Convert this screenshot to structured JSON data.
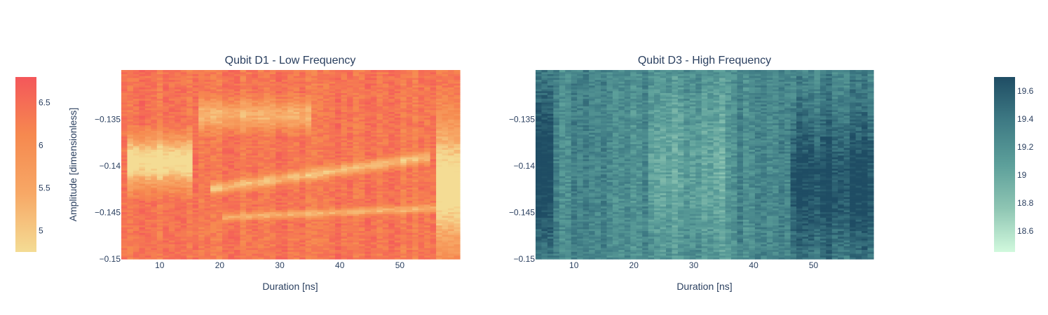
{
  "chart_data": [
    {
      "type": "heatmap",
      "title": "Qubit D1 - Low Frequency",
      "xlabel": "Duration [ns]",
      "ylabel": "Amplitude [dimensionless]",
      "xlim": [
        3.6,
        60
      ],
      "ylim": [
        -0.15,
        -0.13
      ],
      "x_ticks": [
        10,
        20,
        30,
        40,
        50
      ],
      "x_tick_labels": [
        "10",
        "20",
        "30",
        "40",
        "50"
      ],
      "y_ticks": [
        -0.135,
        -0.14,
        -0.145,
        -0.15
      ],
      "y_tick_labels": [
        "−0.135",
        "−0.14",
        "−0.145",
        "−0.15"
      ],
      "z_range": [
        4.75,
        6.8
      ],
      "colorbar": {
        "position": "left",
        "ticks": [
          5,
          5.5,
          6,
          6.5
        ],
        "tick_labels": [
          "5",
          "5.5",
          "6",
          "6.5"
        ],
        "colors": [
          "#f4dc94",
          "#f7a866",
          "#f6894f",
          "#f4575a"
        ]
      },
      "pattern": {
        "base": 6.35,
        "min": 4.75,
        "max": 6.8,
        "features": [
          {
            "x_range": [
              5,
              15
            ],
            "y_center": -0.1395,
            "y_halfwidth": 0.0025,
            "depth": 0.9
          },
          {
            "x_range": [
              16,
              35
            ],
            "y_center": -0.1345,
            "y_halfwidth": 0.0015,
            "depth": 0.5
          },
          {
            "x_range": [
              18,
              55
            ],
            "y_center_start": -0.1425,
            "y_center_end": -0.139,
            "y_halfwidth": 0.0006,
            "depth": 0.6
          },
          {
            "x_range": [
              20,
              56
            ],
            "y_center_start": -0.1455,
            "y_center_end": -0.1445,
            "y_halfwidth": 0.0004,
            "depth": 0.5
          },
          {
            "x_range": [
              56,
              60
            ],
            "y_center": -0.142,
            "y_halfwidth": 0.006,
            "depth": 0.9
          }
        ]
      }
    },
    {
      "type": "heatmap",
      "title": "Qubit D3 - High Frequency",
      "xlabel": "Duration [ns]",
      "ylabel": "",
      "xlim": [
        3.6,
        60
      ],
      "ylim": [
        -0.15,
        -0.13
      ],
      "x_ticks": [
        10,
        20,
        30,
        40,
        50
      ],
      "x_tick_labels": [
        "10",
        "20",
        "30",
        "40",
        "50"
      ],
      "y_ticks": [
        -0.135,
        -0.14,
        -0.145,
        -0.15
      ],
      "y_tick_labels": [
        "−0.135",
        "−0.14",
        "−0.145",
        "−0.15"
      ],
      "z_range": [
        18.45,
        19.7
      ],
      "colorbar": {
        "position": "right",
        "ticks": [
          18.6,
          18.8,
          19,
          19.2,
          19.4,
          19.6
        ],
        "tick_labels": [
          "18.6",
          "18.8",
          "19",
          "19.2",
          "19.4",
          "19.6"
        ],
        "colors": [
          "#d1f9dd",
          "#8ec5b3",
          "#5c9f9a",
          "#3e7a84",
          "#1f4d64"
        ]
      },
      "pattern": {
        "base": 19.25,
        "min": 18.45,
        "max": 19.7,
        "features": [
          {
            "x_range": [
              4,
              7
            ],
            "y_center": -0.14,
            "y_halfwidth": 0.01,
            "depth": -0.5
          },
          {
            "x_range": [
              22,
              35
            ],
            "y_center": -0.14,
            "y_halfwidth": 0.01,
            "depth": 0.2
          },
          {
            "x_range": [
              46,
              60
            ],
            "y_center": -0.142,
            "y_halfwidth": 0.008,
            "depth": -0.35
          }
        ]
      }
    }
  ]
}
